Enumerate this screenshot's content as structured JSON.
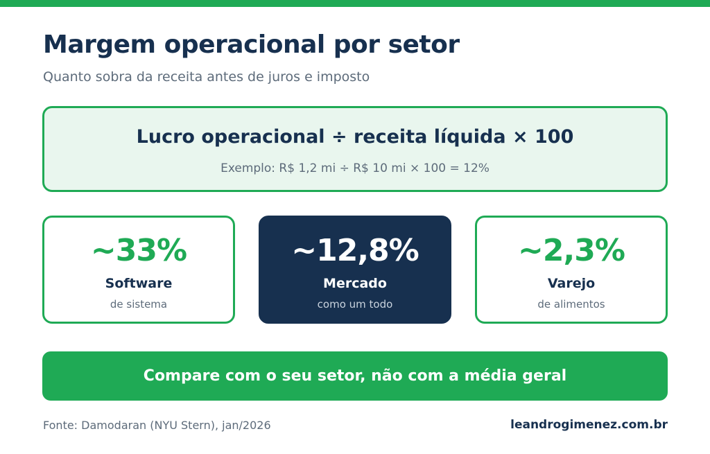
{
  "colors": {
    "accent": "#1faa55",
    "navy": "#17304f",
    "muted": "#5d6b7a",
    "formula_bg": "#e9f6ee"
  },
  "header": {
    "title": "Margem operacional por setor",
    "subtitle": "Quanto sobra da receita antes de juros e imposto"
  },
  "formula": {
    "text": "Lucro operacional ÷ receita líquida × 100",
    "example": "Exemplo: R$ 1,2 mi ÷ R$ 10 mi × 100 = 12%"
  },
  "cards": [
    {
      "value": "~33%",
      "label": "Software",
      "sub": "de sistema"
    },
    {
      "value": "~12,8%",
      "label": "Mercado",
      "sub": "como um todo"
    },
    {
      "value": "~2,3%",
      "label": "Varejo",
      "sub": "de alimentos"
    }
  ],
  "cta": {
    "text": "Compare com o seu setor, não com a média geral"
  },
  "footer": {
    "source": "Fonte: Damodaran (NYU Stern), jan/2026",
    "site": "leandrogimenez.com.br"
  }
}
